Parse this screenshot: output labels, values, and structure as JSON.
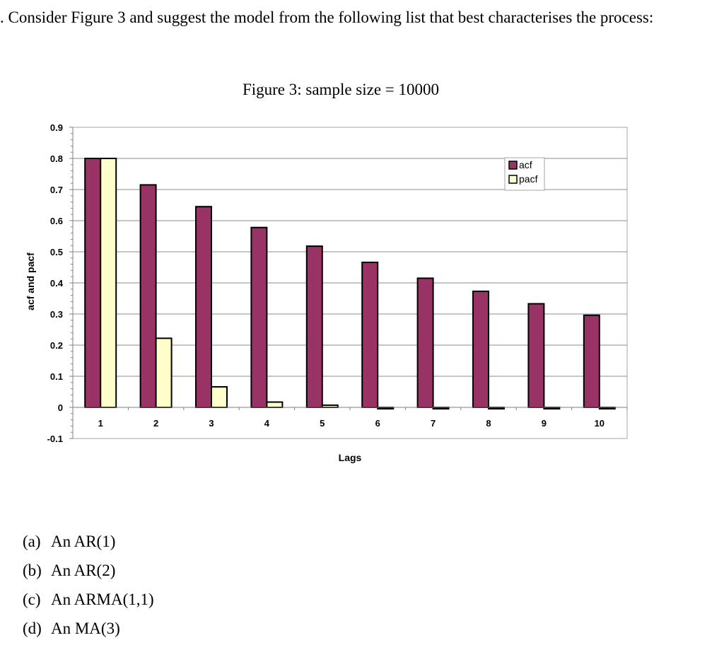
{
  "question": ". Consider Figure 3 and suggest the model from the following list that best characterises the process:",
  "chart_data": {
    "type": "bar",
    "title": "Figure 3: sample size = 10000",
    "xlabel": "Lags",
    "ylabel": "acf and pacf",
    "categories": [
      "1",
      "2",
      "3",
      "4",
      "5",
      "6",
      "7",
      "8",
      "9",
      "10"
    ],
    "series": [
      {
        "name": "acf",
        "color": "#993366",
        "values": [
          0.8,
          0.715,
          0.645,
          0.578,
          0.518,
          0.466,
          0.415,
          0.373,
          0.333,
          0.296
        ]
      },
      {
        "name": "pacf",
        "color": "#FFFFCC",
        "values": [
          0.8,
          0.222,
          0.066,
          0.017,
          0.007,
          0.0,
          -0.004,
          -0.001,
          -0.004,
          0.0
        ]
      }
    ],
    "ylim": [
      -0.1,
      0.9
    ],
    "yticks": [
      "0.9",
      "0.8",
      "0.7",
      "0.6",
      "0.5",
      "0.4",
      "0.3",
      "0.2",
      "0.1",
      "0",
      "-0.1"
    ],
    "ytick_values": [
      0.9,
      0.8,
      0.7,
      0.6,
      0.5,
      0.4,
      0.3,
      0.2,
      0.1,
      0,
      -0.1
    ],
    "grid": true,
    "legend": "top-right"
  },
  "options": [
    {
      "letter": "(a)",
      "text": "An AR(1)"
    },
    {
      "letter": "(b)",
      "text": "An AR(2)"
    },
    {
      "letter": "(c)",
      "text": "An ARMA(1,1)"
    },
    {
      "letter": "(d)",
      "text": "An MA(3)"
    }
  ]
}
